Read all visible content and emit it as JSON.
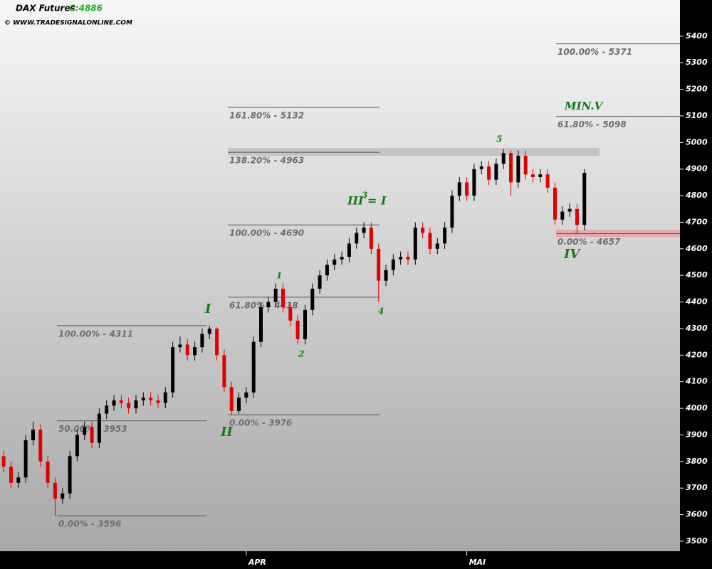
{
  "chart_data": {
    "type": "candlestick",
    "title": "DAX Futures",
    "subtitle": "C:4886",
    "source": "© WWW.TRADESIGNALONLINE.COM",
    "categories": [
      null,
      null,
      null,
      null,
      null,
      null,
      null,
      null,
      null,
      null,
      null,
      null,
      null,
      null,
      null,
      null,
      null,
      null,
      null,
      null,
      null,
      null,
      null,
      null,
      null,
      null,
      null,
      null,
      null,
      null,
      null,
      null,
      null,
      "APR",
      null,
      null,
      null,
      null,
      null,
      null,
      null,
      null,
      null,
      null,
      null,
      null,
      null,
      null,
      null,
      null,
      null,
      null,
      null,
      null,
      null,
      null,
      null,
      null,
      null,
      null,
      null,
      null,
      null,
      "MAI",
      null,
      null,
      null,
      null,
      null,
      null,
      null,
      null,
      null,
      null,
      null,
      null,
      null,
      null,
      null,
      null
    ],
    "xlim": [
      -0.5,
      92
    ],
    "open": [
      3820,
      3780,
      3720,
      3740,
      3880,
      3920,
      3800,
      3720,
      3660,
      3680,
      3820,
      3900,
      3930,
      3870,
      3980,
      4010,
      4030,
      4020,
      4000,
      4030,
      4040,
      4030,
      4020,
      4060,
      4230,
      4240,
      4200,
      4230,
      4280,
      4300,
      4200,
      4080,
      3990,
      4040,
      4060,
      4250,
      4380,
      4400,
      4450,
      4380,
      4330,
      4260,
      4370,
      4450,
      4500,
      4540,
      4560,
      4570,
      4620,
      4660,
      4680,
      4600,
      4480,
      4520,
      4560,
      4570,
      4560,
      4680,
      4660,
      4600,
      4620,
      4680,
      4800,
      4850,
      4800,
      4900,
      4910,
      4860,
      4920,
      4960,
      4850,
      4950,
      4880,
      4870,
      4880,
      4830,
      4710,
      4740,
      4750,
      4690
    ],
    "high": [
      3840,
      3800,
      3760,
      3900,
      3950,
      3940,
      3820,
      3740,
      3700,
      3840,
      3920,
      3950,
      3950,
      4000,
      4030,
      4050,
      4050,
      4040,
      4050,
      4060,
      4060,
      4050,
      4080,
      4250,
      4270,
      4260,
      4250,
      4300,
      4311,
      4305,
      4220,
      4100,
      4060,
      4080,
      4270,
      4400,
      4420,
      4470,
      4470,
      4400,
      4350,
      4390,
      4470,
      4520,
      4560,
      4580,
      4590,
      4640,
      4680,
      4700,
      4700,
      4620,
      4540,
      4580,
      4590,
      4590,
      4700,
      4700,
      4680,
      4640,
      4700,
      4820,
      4870,
      4870,
      4920,
      4930,
      4930,
      4940,
      4975,
      4970,
      4970,
      4970,
      4900,
      4900,
      4900,
      4850,
      4760,
      4770,
      4770,
      4900
    ],
    "low": [
      3760,
      3700,
      3700,
      3720,
      3860,
      3780,
      3700,
      3596,
      3640,
      3660,
      3800,
      3880,
      3850,
      3850,
      3960,
      3990,
      4000,
      3980,
      3980,
      4010,
      4010,
      4000,
      4000,
      4040,
      4210,
      4180,
      4180,
      4210,
      4260,
      4180,
      4060,
      3976,
      3980,
      4020,
      4040,
      4230,
      4360,
      4380,
      4360,
      4310,
      4240,
      4240,
      4350,
      4430,
      4480,
      4520,
      4540,
      4550,
      4600,
      4640,
      4580,
      4400,
      4460,
      4500,
      4540,
      4540,
      4540,
      4640,
      4580,
      4580,
      4600,
      4660,
      4780,
      4780,
      4780,
      4880,
      4840,
      4840,
      4900,
      4800,
      4830,
      4860,
      4850,
      4850,
      4810,
      4690,
      4690,
      4720,
      4657,
      4670
    ],
    "close": [
      3780,
      3720,
      3740,
      3880,
      3920,
      3800,
      3720,
      3660,
      3680,
      3820,
      3900,
      3930,
      3870,
      3980,
      4010,
      4030,
      4020,
      4000,
      4030,
      4040,
      4030,
      4020,
      4060,
      4230,
      4240,
      4200,
      4230,
      4280,
      4300,
      4200,
      4080,
      3990,
      4040,
      4060,
      4250,
      4380,
      4400,
      4450,
      4380,
      4330,
      4260,
      4370,
      4450,
      4500,
      4540,
      4560,
      4570,
      4620,
      4660,
      4680,
      4600,
      4480,
      4520,
      4560,
      4570,
      4560,
      4680,
      4660,
      4600,
      4620,
      4680,
      4800,
      4850,
      4800,
      4900,
      4910,
      4860,
      4920,
      4960,
      4850,
      4950,
      4880,
      4870,
      4880,
      4830,
      4710,
      4740,
      4750,
      4690,
      4886
    ],
    "up_color": "#000000",
    "down_color": "#e00000",
    "ylim": [
      3462.5,
      5536
    ],
    "yticks": [
      3500,
      3600,
      3700,
      3800,
      3900,
      4000,
      4100,
      4200,
      4300,
      4400,
      4500,
      4600,
      4700,
      4800,
      4900,
      5000,
      5100,
      5200,
      5300,
      5400
    ],
    "levels": [
      {
        "label": "100.00% - 4311",
        "value": 4311
      },
      {
        "label": "50.00% - 3953",
        "value": 3953
      },
      {
        "label": "0.00% - 3596",
        "value": 3596
      },
      {
        "label": "161.80% - 5132",
        "value": 5132
      },
      {
        "label": "138.20% - 4963",
        "value": 4963
      },
      {
        "label": "100.00% - 4690",
        "value": 4690
      },
      {
        "label": "61.80% - 4418",
        "value": 4418
      },
      {
        "label": "0.00% - 3976",
        "value": 3976
      },
      {
        "label": "100.00% - 5371",
        "value": 5371
      },
      {
        "label": "61.80% - 5098",
        "value": 5098
      },
      {
        "label": "0.00% - 4657",
        "value": 4657
      }
    ],
    "annotations": [
      "I",
      "II",
      "III = I",
      "1",
      "2",
      "3",
      "4",
      "5",
      "MIN.V",
      "IV"
    ]
  }
}
